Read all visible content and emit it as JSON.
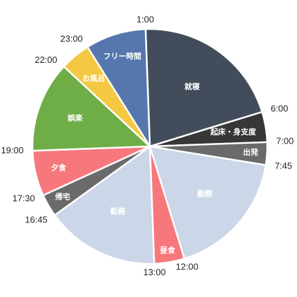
{
  "chart_data": {
    "type": "pie",
    "title": "",
    "start_angle_deg": -2.1,
    "slices": [
      {
        "label": "就寝",
        "start": "1:00",
        "end": "6:00",
        "hours": 5.0,
        "color": "#434c5a",
        "label_offset": 0.62
      },
      {
        "label": "起床・身支度",
        "start": "6:00",
        "end": "7:00",
        "hours": 1.0,
        "color": "#373737",
        "label_offset": 0.72
      },
      {
        "label": "出発",
        "start": "7:00",
        "end": "7:45",
        "hours": 0.75,
        "color": "#6a6a6a",
        "label_offset": 0.86
      },
      {
        "label": "勤務",
        "start": "7:45",
        "end": "12:00",
        "hours": 4.25,
        "color": "#cbd6e8",
        "label_offset": 0.62
      },
      {
        "label": "昼食",
        "start": "12:00",
        "end": "13:00",
        "hours": 1.0,
        "color": "#f7787c",
        "label_offset": 0.9
      },
      {
        "label": "勤務",
        "start": "13:00",
        "end": "16:45",
        "hours": 3.75,
        "color": "#cbd6e8",
        "label_offset": 0.62
      },
      {
        "label": "帰宅",
        "start": "16:45",
        "end": "17:30",
        "hours": 0.75,
        "color": "#6a6a6a",
        "label_offset": 0.86
      },
      {
        "label": "夕食",
        "start": "17:30",
        "end": "19:00",
        "hours": 1.5,
        "color": "#f7787c",
        "label_offset": 0.8
      },
      {
        "label": "娯楽",
        "start": "19:00",
        "end": "22:00",
        "hours": 3.0,
        "color": "#6fad47",
        "label_offset": 0.68
      },
      {
        "label": "お風呂",
        "start": "22:00",
        "end": "23:00",
        "hours": 1.0,
        "color": "#f4c842",
        "label_offset": 0.75
      },
      {
        "label": "フリー時間",
        "start": "23:00",
        "end": "1:00",
        "hours": 2.0,
        "color": "#5677ad",
        "label_offset": 0.8
      }
    ],
    "boundary_labels": [
      "1:00",
      "6:00",
      "7:00",
      "7:45",
      "12:00",
      "13:00",
      "16:45",
      "17:30",
      "19:00",
      "22:00",
      "23:00"
    ],
    "legend": "none",
    "grid": false
  }
}
